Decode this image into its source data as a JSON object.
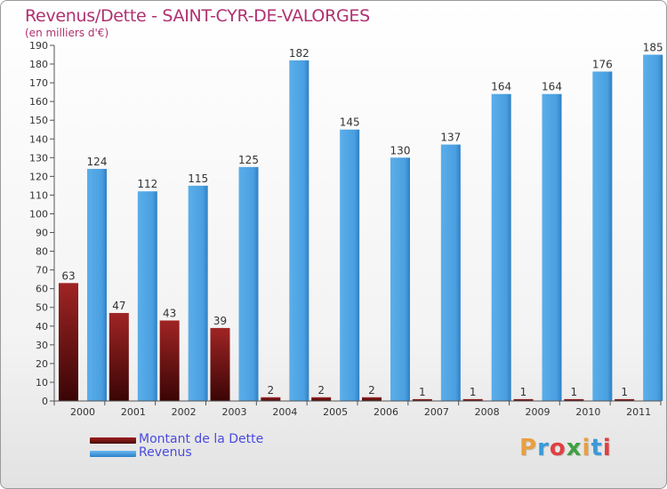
{
  "title": "Revenus/Dette - SAINT-CYR-DE-VALORGES",
  "subtitle": "(en milliers d'€)",
  "logo": {
    "text": "Proxiti",
    "colors": [
      "#e8a040",
      "#3a9ad9",
      "#e04040",
      "#40a040",
      "#e8a040",
      "#3a9ad9",
      "#e04040"
    ]
  },
  "chart_data": {
    "type": "bar",
    "categories": [
      "2000",
      "2001",
      "2002",
      "2003",
      "2004",
      "2005",
      "2006",
      "2007",
      "2008",
      "2009",
      "2010",
      "2011"
    ],
    "series": [
      {
        "name": "Montant de la Dette",
        "color": "#7a1010",
        "values": [
          63,
          47,
          43,
          39,
          2,
          2,
          2,
          1,
          1,
          1,
          1,
          1
        ]
      },
      {
        "name": "Revenus",
        "color": "#4aa0e0",
        "values": [
          124,
          112,
          115,
          125,
          182,
          145,
          130,
          137,
          164,
          164,
          176,
          185
        ]
      }
    ],
    "ylim": [
      0,
      190
    ],
    "yticks": [
      0,
      10,
      20,
      30,
      40,
      50,
      60,
      70,
      80,
      90,
      100,
      110,
      120,
      130,
      140,
      150,
      160,
      170,
      180,
      190
    ],
    "grid": false,
    "legend_position": "bottom-left"
  }
}
